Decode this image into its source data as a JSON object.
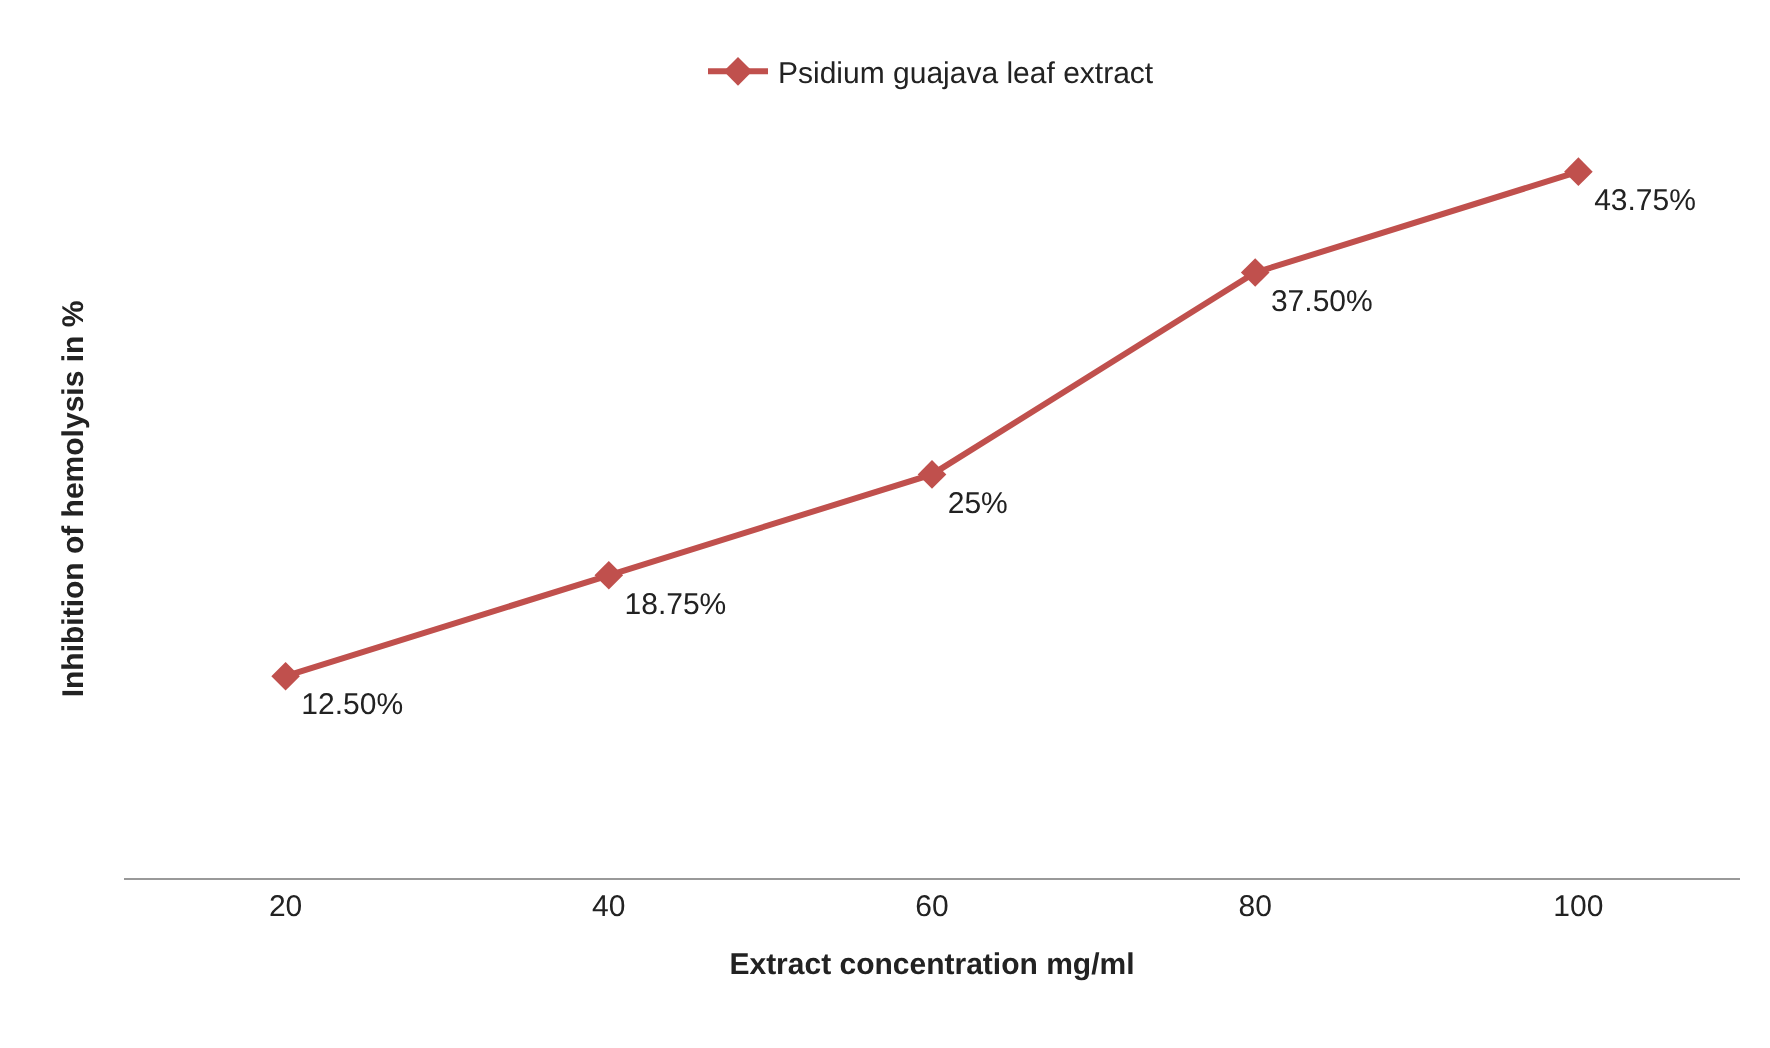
{
  "chart_data": {
    "type": "line",
    "xlabel": "Extract concentration mg/ml",
    "ylabel": "Inhibition of hemolysis in %",
    "categories": [
      "20",
      "40",
      "60",
      "80",
      "100"
    ],
    "series": [
      {
        "name": "Psidium guajava leaf extract",
        "color": "#c0504d",
        "values": [
          12.5,
          18.75,
          25,
          37.5,
          43.75
        ],
        "value_labels": [
          "12.50%",
          "18.75%",
          "25%",
          "37.50%",
          "43.75%"
        ]
      }
    ],
    "tick_labels": "x",
    "marker": "diamond",
    "line_style": "solid",
    "legend": "top"
  }
}
